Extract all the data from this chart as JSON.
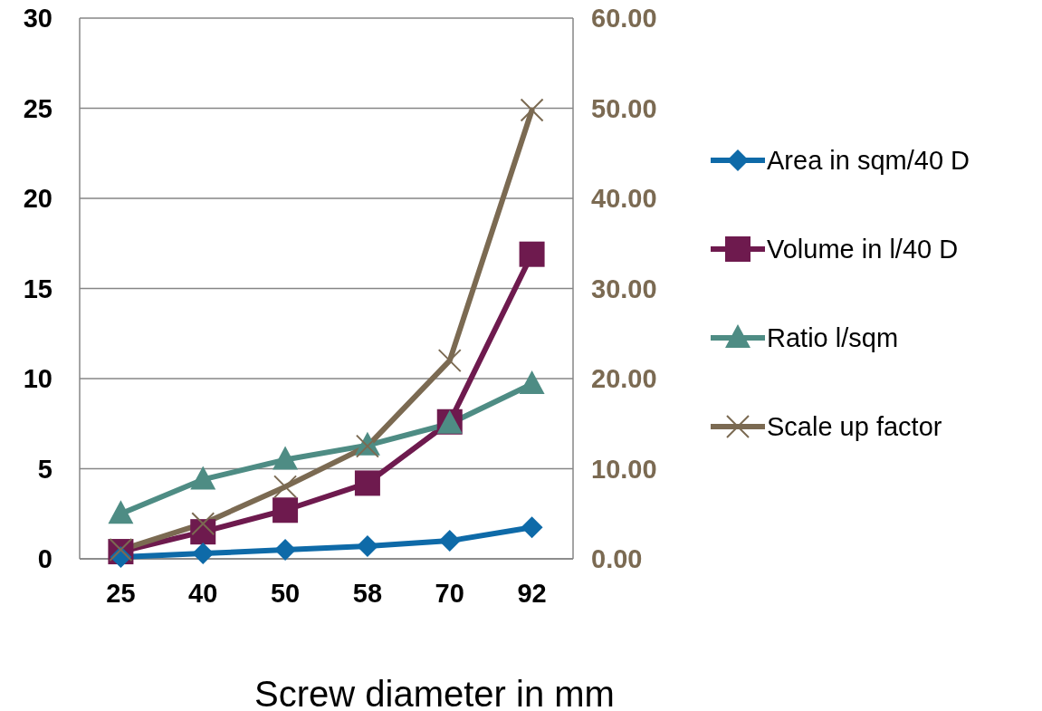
{
  "chart_data": {
    "type": "line",
    "xlabel": "Screw diameter in mm",
    "categories": [
      "25",
      "40",
      "50",
      "58",
      "70",
      "92"
    ],
    "series": [
      {
        "name": "Area in sqm/40 D",
        "color": "#0e6aa8",
        "marker": "diamond",
        "values": [
          0.1,
          0.3,
          0.5,
          0.7,
          1.0,
          1.75
        ]
      },
      {
        "name": "Volume in l/40 D",
        "color": "#6e1a4e",
        "marker": "square",
        "values": [
          0.4,
          1.5,
          2.7,
          4.2,
          7.6,
          16.9
        ]
      },
      {
        "name": "Ratio l/sqm",
        "color": "#4e8c84",
        "marker": "triangle",
        "values": [
          2.5,
          4.4,
          5.5,
          6.3,
          7.5,
          9.7
        ]
      },
      {
        "name": "Scale up factor",
        "color": "#7b6a52",
        "marker": "cross",
        "axis": "y2",
        "values": [
          1.0,
          3.9,
          8.0,
          12.5,
          22.0,
          49.8
        ]
      }
    ],
    "ylim": [
      0,
      30
    ],
    "yticks": [
      0,
      5,
      10,
      15,
      20,
      25,
      30
    ],
    "y2lim": [
      0,
      60
    ],
    "y2ticks": [
      {
        "value": 0,
        "label": "0.00"
      },
      {
        "value": 10,
        "label": "10.00"
      },
      {
        "value": 20,
        "label": "20.00"
      },
      {
        "value": 30,
        "label": "30.00"
      },
      {
        "value": 40,
        "label": "40.00"
      },
      {
        "value": 50,
        "label": "50.00"
      },
      {
        "value": 60,
        "label": "60.00"
      }
    ],
    "grid": "y",
    "legend": "right"
  }
}
